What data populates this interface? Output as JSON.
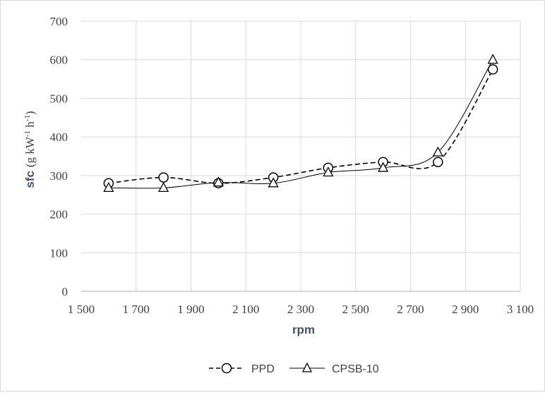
{
  "chart_data": {
    "type": "line",
    "title": "",
    "xlabel": "rpm",
    "ylabel": {
      "main": "sfc",
      "unit_prefix": "(g kW",
      "unit_exp1": "-1",
      "unit_mid": " h",
      "unit_exp2": "-1",
      "unit_suffix": ")"
    },
    "xlim": [
      1500,
      3100
    ],
    "ylim": [
      0,
      700
    ],
    "x_ticks": [
      1500,
      1700,
      1900,
      2100,
      2300,
      2500,
      2700,
      2900,
      3100
    ],
    "x_tick_labels": [
      "1 500",
      "1 700",
      "1 900",
      "2 100",
      "2 300",
      "2 500",
      "2 700",
      "2 900",
      "3 100"
    ],
    "y_ticks": [
      0,
      100,
      200,
      300,
      400,
      500,
      600,
      700
    ],
    "y_tick_labels": [
      "0",
      "100",
      "200",
      "300",
      "400",
      "500",
      "600",
      "700"
    ],
    "grid": true,
    "legend": "bottom",
    "x": [
      1600,
      1800,
      2000,
      2200,
      2400,
      2600,
      2800,
      3000
    ],
    "series": [
      {
        "name": "PPD",
        "values": [
          280,
          295,
          280,
          295,
          320,
          335,
          335,
          575
        ],
        "marker": "circle",
        "line_style": "dashed",
        "color": "#000000"
      },
      {
        "name": "CPSB-10",
        "values": [
          268,
          268,
          282,
          280,
          308,
          320,
          360,
          600
        ],
        "marker": "triangle",
        "line_style": "solid",
        "color": "#000000"
      }
    ]
  }
}
